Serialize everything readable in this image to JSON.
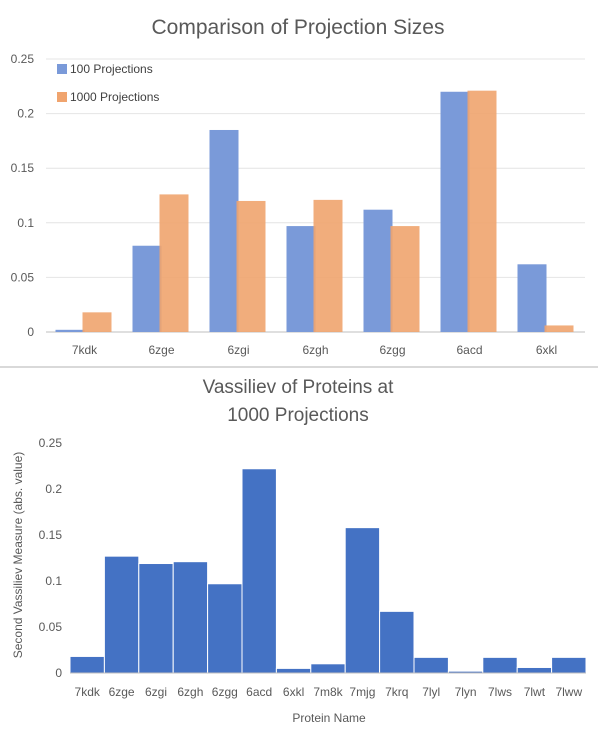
{
  "chart_data": [
    {
      "type": "bar",
      "title": "Comparison of Projection Sizes",
      "xlabel": "",
      "ylabel": "",
      "categories": [
        "7kdk",
        "6zge",
        "6zgi",
        "6zgh",
        "6zgg",
        "6acd",
        "6xkl"
      ],
      "series": [
        {
          "name": "100 Projections",
          "values": [
            0.002,
            0.079,
            0.185,
            0.097,
            0.112,
            0.22,
            0.062
          ],
          "color": "#7a9ad9"
        },
        {
          "name": "1000 Projections",
          "values": [
            0.018,
            0.126,
            0.12,
            0.121,
            0.097,
            0.221,
            0.006
          ],
          "color": "#f0a46e"
        }
      ],
      "ylim": [
        0,
        0.25
      ],
      "yticks": [
        "0",
        "0.05",
        "0.1",
        "0.15",
        "0.2",
        "0.25"
      ],
      "grid": true,
      "legend_position": "top-left"
    },
    {
      "type": "bar",
      "title": "Vassiliev of Proteins at 1000 Projections",
      "title_lines": [
        "Vassiliev of Proteins at",
        "1000 Projections"
      ],
      "xlabel": "Protein Name",
      "ylabel": "Second Vassiliev Measure (abs. value)",
      "categories": [
        "7kdk",
        "6zge",
        "6zgi",
        "6zgh",
        "6zgg",
        "6acd",
        "6xkl",
        "7m8k",
        "7mjg",
        "7krq",
        "7lyl",
        "7lyn",
        "7lws",
        "7lwt",
        "7lww"
      ],
      "values": [
        0.018,
        0.127,
        0.119,
        0.121,
        0.097,
        0.222,
        0.005,
        0.01,
        0.158,
        0.067,
        0.017,
        0.002,
        0.017,
        0.006,
        0.017
      ],
      "color": "#4472c4",
      "ylim": [
        0,
        0.25
      ],
      "yticks": [
        "0",
        "0.05",
        "0.1",
        "0.15",
        "0.2",
        "0.25"
      ],
      "grid": false
    }
  ]
}
